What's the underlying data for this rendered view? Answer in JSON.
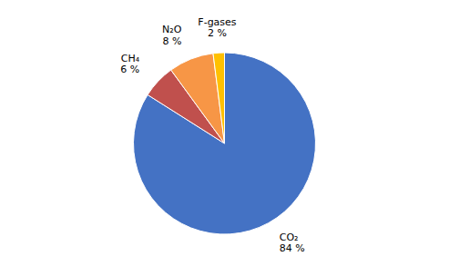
{
  "chart_data": {
    "type": "pie",
    "categories": [
      "CO₂",
      "CH₄",
      "N₂O",
      "F-gases"
    ],
    "values": [
      84,
      6,
      8,
      2
    ],
    "value_labels": [
      "84 %",
      "6 %",
      "8 %",
      "2 %"
    ],
    "colors": [
      "#4472C4",
      "#C0504D",
      "#F79646",
      "#FFC000"
    ]
  }
}
